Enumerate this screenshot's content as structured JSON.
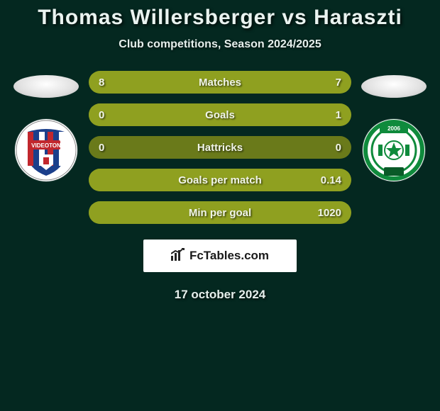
{
  "title": "Thomas Willersberger vs Haraszti",
  "subtitle": "Club competitions, Season 2024/2025",
  "date": "17 october 2024",
  "watermark": "FcTables.com",
  "stats_colors": {
    "bar_bg": "#6a7a1a",
    "bar_fill": "#8fa020",
    "text": "#f0f4e8",
    "page_bg": "#042820"
  },
  "typography": {
    "title_fontsize": 30,
    "subtitle_fontsize": 16,
    "stat_fontsize": 15,
    "date_fontsize": 17
  },
  "rows": [
    {
      "label": "Matches",
      "left": "8",
      "right": "7",
      "fill_left_pct": 53,
      "fill_right_pct": 47
    },
    {
      "label": "Goals",
      "left": "0",
      "right": "1",
      "fill_left_pct": 0,
      "fill_right_pct": 100
    },
    {
      "label": "Hattricks",
      "left": "0",
      "right": "0",
      "fill_left_pct": 0,
      "fill_right_pct": 0
    },
    {
      "label": "Goals per match",
      "left": "",
      "right": "0.14",
      "fill_left_pct": 0,
      "fill_right_pct": 100
    },
    {
      "label": "Min per goal",
      "left": "",
      "right": "1020",
      "fill_left_pct": 0,
      "fill_right_pct": 100
    }
  ],
  "left_team": {
    "name": "Videoton",
    "logo_colors": {
      "red": "#c1272d",
      "blue": "#1b3f8b",
      "white": "#ffffff"
    }
  },
  "right_team": {
    "name": "Paksi",
    "logo_colors": {
      "green": "#0f8a3c",
      "white": "#ffffff",
      "dark": "#0a5a28"
    }
  }
}
